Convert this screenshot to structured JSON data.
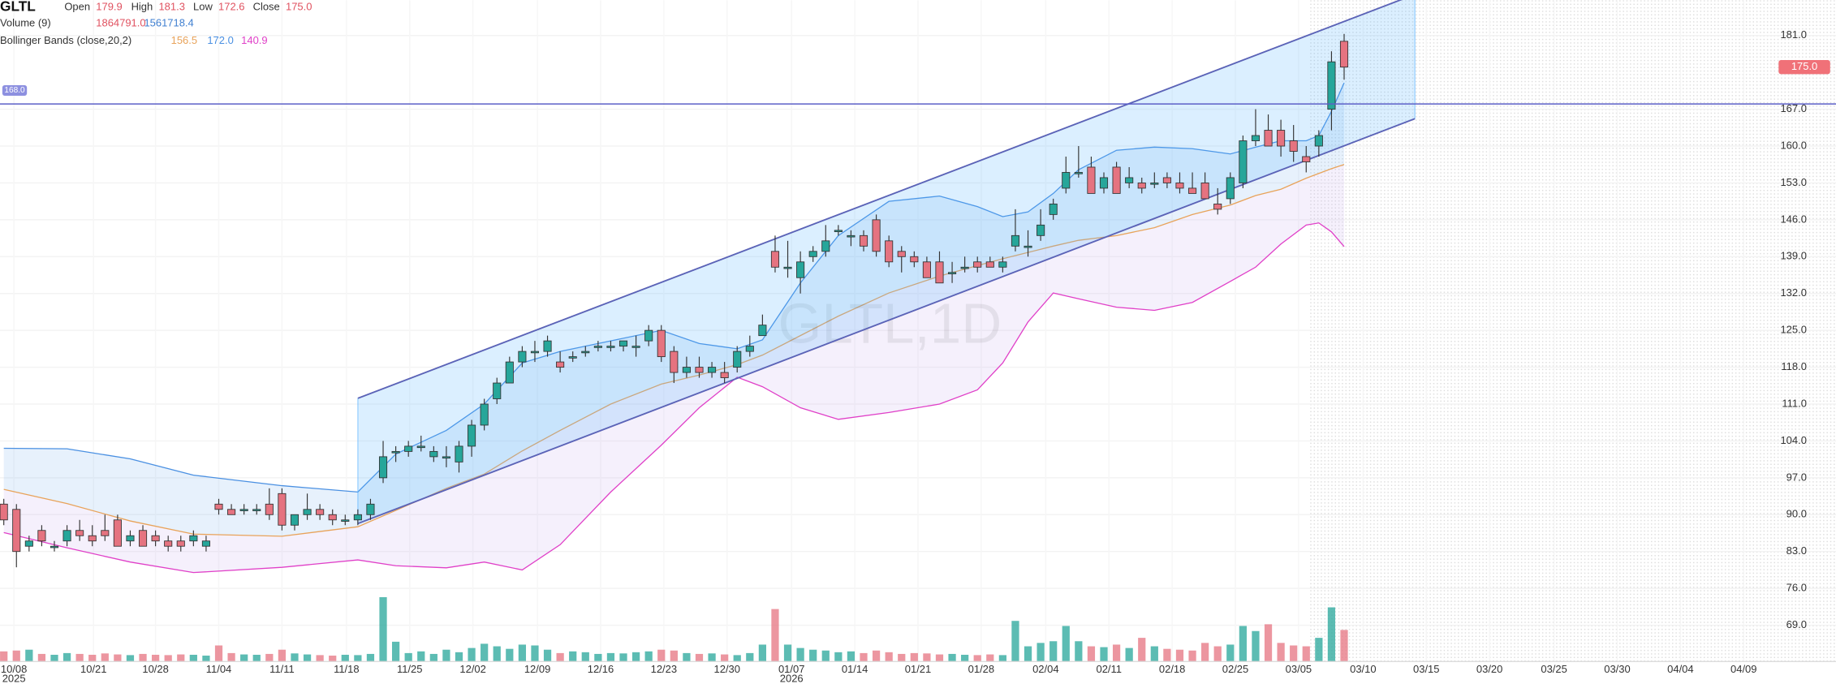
{
  "chart_data": {
    "type": "candlestick",
    "legend": {
      "symbol": "GLTL",
      "ohlc": [
        {
          "label": "Open",
          "value": "179.9"
        },
        {
          "label": "High",
          "value": "181.3"
        },
        {
          "label": "Low",
          "value": "172.6"
        },
        {
          "label": "Close",
          "value": "175.0"
        }
      ],
      "volume": {
        "label": "Volume (9)",
        "values": [
          "1864791.0",
          "1561718.4"
        ]
      },
      "bollinger": {
        "label": "Bollinger Bands (close,20,2)",
        "values": [
          "156.5",
          "172.0",
          "140.9"
        ]
      }
    },
    "watermark": "GLTL,1D",
    "ohlc": [
      [
        92,
        93,
        88,
        89
      ],
      [
        91,
        92,
        80,
        83
      ],
      [
        84,
        86,
        83,
        85
      ],
      [
        87,
        88,
        84,
        85
      ],
      [
        84,
        85,
        83,
        84
      ],
      [
        85,
        88,
        84,
        87
      ],
      [
        87,
        89,
        85,
        86
      ],
      [
        86,
        88,
        84,
        85
      ],
      [
        87,
        90,
        85,
        86
      ],
      [
        89,
        90,
        84,
        84
      ],
      [
        85,
        87,
        84,
        86
      ],
      [
        87,
        88,
        84,
        84
      ],
      [
        86,
        87,
        84,
        85
      ],
      [
        85,
        86,
        83,
        84
      ],
      [
        85,
        86,
        83,
        84
      ],
      [
        85,
        87,
        84,
        86
      ],
      [
        84,
        86,
        83,
        85
      ],
      [
        92,
        93,
        90,
        91
      ],
      [
        91,
        92,
        90,
        90
      ],
      [
        91,
        92,
        90,
        91
      ],
      [
        91,
        92,
        90,
        91
      ],
      [
        92,
        95,
        89,
        90
      ],
      [
        94,
        95,
        87,
        88
      ],
      [
        88,
        90,
        87,
        90
      ],
      [
        90,
        94,
        89,
        91
      ],
      [
        91,
        92,
        89,
        90
      ],
      [
        90,
        91,
        88,
        89
      ],
      [
        89,
        90,
        88,
        89
      ],
      [
        89,
        91,
        88,
        90
      ],
      [
        90,
        93,
        89,
        92
      ],
      [
        97,
        104,
        96,
        101
      ],
      [
        102,
        103,
        100,
        102
      ],
      [
        102,
        104,
        101,
        103
      ],
      [
        103,
        105,
        102,
        103
      ],
      [
        101,
        103,
        100,
        102
      ],
      [
        101,
        103,
        99,
        101
      ],
      [
        100,
        104,
        98,
        103
      ],
      [
        103,
        108,
        101,
        107
      ],
      [
        107,
        112,
        106,
        111
      ],
      [
        112,
        116,
        111,
        115
      ],
      [
        115,
        120,
        115,
        119
      ],
      [
        119,
        122,
        118,
        121
      ],
      [
        121,
        123,
        119,
        121
      ],
      [
        121,
        124,
        120,
        123
      ],
      [
        119,
        121,
        117,
        118
      ],
      [
        120,
        121,
        119,
        120
      ],
      [
        121,
        122,
        120,
        121
      ],
      [
        122,
        123,
        121,
        122
      ],
      [
        122,
        123,
        121,
        122
      ],
      [
        122,
        123,
        121,
        123
      ],
      [
        122,
        124,
        120,
        122
      ],
      [
        123,
        126,
        122,
        125
      ],
      [
        125,
        126,
        119,
        120
      ],
      [
        121,
        122,
        115,
        117
      ],
      [
        117,
        120,
        116,
        118
      ],
      [
        118,
        120,
        116,
        117
      ],
      [
        117,
        119,
        116,
        118
      ],
      [
        117,
        119,
        115,
        116
      ],
      [
        118,
        122,
        117,
        121
      ],
      [
        121,
        124,
        120,
        122
      ],
      [
        124,
        128,
        124,
        126
      ],
      [
        140,
        143,
        136,
        137
      ],
      [
        137,
        142,
        135,
        137
      ],
      [
        135,
        140,
        132,
        138
      ],
      [
        139,
        141,
        138,
        140
      ],
      [
        140,
        145,
        139,
        142
      ],
      [
        144,
        145,
        143,
        144
      ],
      [
        143,
        144,
        141,
        143
      ],
      [
        143,
        144,
        140,
        141
      ],
      [
        146,
        147,
        139,
        140
      ],
      [
        142,
        143,
        137,
        138
      ],
      [
        140,
        141,
        136,
        139
      ],
      [
        139,
        140,
        137,
        138
      ],
      [
        138,
        139,
        135,
        135
      ],
      [
        138,
        140,
        134,
        134
      ],
      [
        136,
        138,
        134,
        136
      ],
      [
        137,
        139,
        136,
        137
      ],
      [
        138,
        139,
        136,
        137
      ],
      [
        138,
        139,
        137,
        137
      ],
      [
        137,
        139,
        136,
        138
      ],
      [
        141,
        148,
        140,
        143
      ],
      [
        141,
        144,
        139,
        141
      ],
      [
        143,
        148,
        142,
        145
      ],
      [
        147,
        150,
        146,
        149
      ],
      [
        152,
        158,
        151,
        155
      ],
      [
        155,
        160,
        154,
        155
      ],
      [
        156,
        158,
        151,
        151
      ],
      [
        152,
        155,
        151,
        154
      ],
      [
        156,
        157,
        151,
        151
      ],
      [
        153,
        156,
        152,
        154
      ],
      [
        153,
        154,
        151,
        152
      ],
      [
        153,
        155,
        152,
        153
      ],
      [
        154,
        155,
        152,
        153
      ],
      [
        153,
        155,
        151,
        152
      ],
      [
        152,
        155,
        151,
        151
      ],
      [
        153,
        155,
        150,
        150
      ],
      [
        149,
        152,
        147,
        148
      ],
      [
        150,
        155,
        149,
        154
      ],
      [
        153,
        162,
        152,
        161
      ],
      [
        161,
        167,
        160,
        162
      ],
      [
        163,
        166,
        160,
        160
      ],
      [
        163,
        165,
        158,
        160
      ],
      [
        161,
        164,
        157,
        159
      ],
      [
        158,
        160,
        155,
        157
      ],
      [
        160,
        163,
        158,
        162
      ],
      [
        167,
        178,
        163,
        176
      ],
      [
        179.9,
        181.3,
        172.6,
        175
      ]
    ],
    "volume": [
      600000,
      650000,
      700000,
      450000,
      400000,
      500000,
      450000,
      400000,
      480000,
      420000,
      380000,
      450000,
      400000,
      380000,
      420000,
      400000,
      350000,
      950000,
      500000,
      420000,
      400000,
      450000,
      700000,
      480000,
      420000,
      380000,
      350000,
      400000,
      380000,
      450000,
      3800000,
      1170000,
      500000,
      600000,
      450000,
      700000,
      550000,
      800000,
      1050000,
      900000,
      750000,
      1000000,
      950000,
      700000,
      500000,
      600000,
      550000,
      450000,
      500000,
      480000,
      550000,
      600000,
      700000,
      650000,
      500000,
      450000,
      480000,
      420000,
      380000,
      500000,
      1000000,
      3100000,
      1000000,
      800000,
      700000,
      650000,
      550000,
      600000,
      500000,
      650000,
      550000,
      450000,
      500000,
      480000,
      420000,
      450000,
      400000,
      380000,
      420000,
      380000,
      2400000,
      900000,
      1100000,
      1200000,
      2100000,
      1200000,
      900000,
      850000,
      1000000,
      800000,
      1400000,
      900000,
      750000,
      700000,
      650000,
      1100000,
      900000,
      1000000,
      2100000,
      1800000,
      2200000,
      1100000,
      950000,
      900000,
      1400000,
      3200000,
      1864791
    ],
    "up_color": "#26a69a",
    "down_color": "#e57380",
    "bollinger": {
      "x": [
        0,
        5,
        10,
        15,
        22,
        28,
        31,
        35,
        38,
        41,
        44,
        48,
        52,
        55,
        58,
        60,
        63,
        66,
        70,
        74,
        77,
        79,
        81,
        83,
        85,
        88,
        91,
        94,
        97,
        99,
        101,
        103,
        104,
        105,
        106
      ],
      "upper": [
        102.6,
        102.5,
        100.6,
        97.5,
        95.5,
        94.3,
        101.5,
        106,
        111,
        118.8,
        121,
        123,
        125,
        122.5,
        121.5,
        123.2,
        134,
        143,
        149.5,
        150.5,
        148.5,
        146.6,
        147.5,
        151,
        155.5,
        159.2,
        159.8,
        159.5,
        158.5,
        159.8,
        161,
        161,
        162,
        166.6,
        172.0
      ],
      "middle": [
        94.8,
        92.1,
        88.8,
        86.3,
        85.9,
        87.7,
        90.8,
        95,
        97.7,
        102.1,
        106,
        111,
        114.8,
        116.5,
        118.5,
        120.3,
        124,
        127.7,
        132.1,
        135.3,
        137.3,
        138.6,
        139.8,
        141,
        142.1,
        143,
        144.5,
        147,
        148.8,
        150.6,
        151.8,
        153.9,
        154.8,
        155.7,
        156.5
      ],
      "lower": [
        86.6,
        83.7,
        81,
        79,
        80,
        81.4,
        80.3,
        79.9,
        81,
        79.5,
        84.3,
        94.3,
        103.2,
        110.3,
        116.1,
        114.3,
        110.3,
        108.1,
        109.4,
        111,
        113.7,
        118.8,
        126.6,
        132.1,
        131,
        129.4,
        128.8,
        130.3,
        134.3,
        137,
        141.4,
        145,
        145.4,
        143.7,
        140.9
      ],
      "colors": [
        "#4a90e2",
        "#e8a35a",
        "#e040c8"
      ]
    },
    "channel": {
      "x": [
        28,
        111.6
      ],
      "upper": [
        112.1,
        188.8
      ],
      "lower": [
        88.3,
        165.2
      ],
      "color": "#5b63b7"
    },
    "hline": {
      "value": 168,
      "label": "168.0",
      "color": "#5b5fc7"
    },
    "last_price": {
      "value": 175,
      "label": "175.0"
    },
    "xlim": [
      -0.3,
      144.9
    ],
    "ylim": [
      62.1,
      187.7
    ],
    "yticks": [
      {
        "value": 69,
        "label": "69.0"
      },
      {
        "value": 76,
        "label": "76.0"
      },
      {
        "value": 83,
        "label": "83.0"
      },
      {
        "value": 90,
        "label": "90.0"
      },
      {
        "value": 97,
        "label": "97.0"
      },
      {
        "value": 104,
        "label": "104.0"
      },
      {
        "value": 111,
        "label": "111.0"
      },
      {
        "value": 118,
        "label": "118.0"
      },
      {
        "value": 125,
        "label": "125.0"
      },
      {
        "value": 132,
        "label": "132.0"
      },
      {
        "value": 139,
        "label": "139.0"
      },
      {
        "value": 146,
        "label": "146.0"
      },
      {
        "value": 153,
        "label": "153.0"
      },
      {
        "value": 160,
        "label": "160.0"
      },
      {
        "value": 167,
        "label": "167.0"
      },
      {
        "value": 181,
        "label": "181.0"
      }
    ],
    "xticks": [
      {
        "value": 0.8,
        "label": "10/08"
      },
      {
        "value": 7.1,
        "label": "10/21"
      },
      {
        "value": 12.0,
        "label": "10/28"
      },
      {
        "value": 17.0,
        "label": "11/04"
      },
      {
        "value": 22.0,
        "label": "11/11"
      },
      {
        "value": 27.1,
        "label": "11/18"
      },
      {
        "value": 32.1,
        "label": "11/25"
      },
      {
        "value": 37.1,
        "label": "12/02"
      },
      {
        "value": 42.2,
        "label": "12/09"
      },
      {
        "value": 47.2,
        "label": "12/16"
      },
      {
        "value": 52.2,
        "label": "12/23"
      },
      {
        "value": 57.2,
        "label": "12/30"
      },
      {
        "value": 62.3,
        "label": "01/07"
      },
      {
        "value": 67.3,
        "label": "01/14"
      },
      {
        "value": 72.3,
        "label": "01/21"
      },
      {
        "value": 77.3,
        "label": "01/28"
      },
      {
        "value": 82.4,
        "label": "02/04"
      },
      {
        "value": 87.4,
        "label": "02/11"
      },
      {
        "value": 92.4,
        "label": "02/18"
      },
      {
        "value": 97.4,
        "label": "02/25"
      },
      {
        "value": 102.4,
        "label": "03/05"
      },
      {
        "value": 107.5,
        "label": "03/10"
      },
      {
        "value": 112.5,
        "label": "03/15"
      },
      {
        "value": 117.5,
        "label": "03/20"
      },
      {
        "value": 122.6,
        "label": "03/25"
      },
      {
        "value": 127.6,
        "label": "03/30"
      },
      {
        "value": 132.6,
        "label": "04/04"
      },
      {
        "value": 137.6,
        "label": "04/09"
      }
    ],
    "years": [
      {
        "tick": 0,
        "label": "2025"
      },
      {
        "tick": 12,
        "label": "2026"
      }
    ]
  }
}
